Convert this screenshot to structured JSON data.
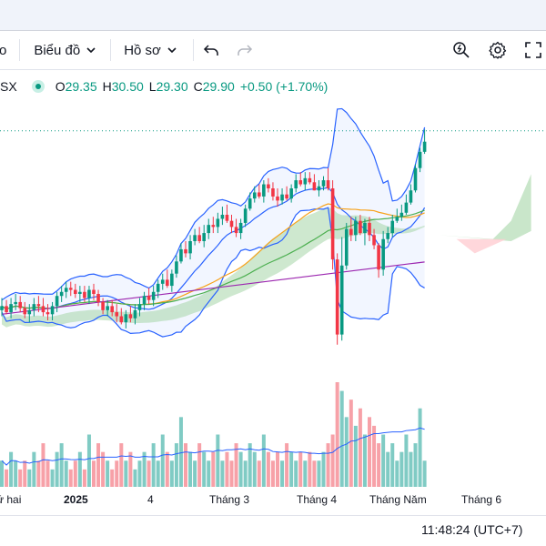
{
  "toolbar": {
    "partial_label": "o",
    "chart_label": "Biểu đồ",
    "profile_label": "Hồ sơ"
  },
  "icons": [
    "chevron-down-icon",
    "undo-icon",
    "redo-icon",
    "quick-search-icon",
    "gear-icon",
    "fullscreen-icon"
  ],
  "legend": {
    "symbol_partial": "SX",
    "open_label": "O",
    "open_value": "29.35",
    "high_label": "H",
    "high_value": "30.50",
    "low_label": "L",
    "low_value": "29.30",
    "close_label": "C",
    "close_value": "29.90",
    "change": "+0.50 (+1.70%)"
  },
  "colors": {
    "up": "#089981",
    "down": "#f23645",
    "bollinger": "#2962ff",
    "ma_orange": "#f7a21b",
    "ma_green": "#4caf50",
    "ma_purple": "#9c27b0",
    "cloud_green": "#a5d6a7",
    "cloud_red": "#ffcdd2"
  },
  "x_axis": {
    "labels": [
      "ứ hai",
      "2025",
      "4",
      "Tháng 3",
      "Tháng 4",
      "Tháng Năm",
      "Tháng 6"
    ]
  },
  "clock": "11:48:24 (UTC+7)",
  "chart_data": {
    "type": "candlestick",
    "open": [
      21.6,
      21.8,
      21.5,
      21.9,
      22.0,
      21.7,
      21.4,
      21.6,
      21.9,
      21.8,
      21.5,
      21.4,
      21.8,
      22.3,
      22.5,
      22.7,
      22.6,
      22.4,
      22.5,
      22.2,
      22.6,
      22.4,
      22.0,
      21.6,
      21.8,
      21.5,
      21.3,
      21.0,
      21.4,
      21.2,
      21.6,
      21.9,
      22.3,
      22.1,
      22.5,
      22.9,
      23.1,
      22.8,
      23.4,
      24.0,
      24.6,
      24.4,
      25.0,
      25.3,
      25.0,
      25.4,
      25.8,
      25.7,
      26.1,
      26.3,
      26.0,
      25.7,
      25.4,
      25.9,
      26.6,
      27.1,
      27.4,
      27.2,
      27.8,
      27.6,
      27.2,
      27.0,
      27.3,
      27.1,
      27.6,
      28.0,
      27.8,
      28.1,
      27.9,
      27.5,
      27.7,
      28.0,
      27.6,
      24.1,
      20.4,
      23.8,
      25.6,
      25.3,
      26.0,
      25.4,
      25.9,
      25.3,
      24.8,
      23.6,
      25.1,
      25.4,
      26.0,
      26.2,
      26.4,
      26.9,
      27.5,
      28.6,
      29.4
    ],
    "high": [
      22.2,
      22.1,
      22.2,
      22.4,
      22.3,
      22.0,
      21.9,
      22.2,
      22.3,
      22.2,
      21.9,
      22.0,
      22.5,
      22.8,
      23.0,
      23.0,
      22.9,
      22.8,
      22.8,
      22.8,
      22.9,
      22.6,
      22.2,
      22.1,
      22.1,
      21.9,
      21.7,
      21.6,
      21.8,
      21.9,
      22.2,
      22.5,
      22.7,
      22.8,
      23.1,
      23.4,
      23.6,
      23.6,
      24.3,
      24.9,
      25.0,
      25.3,
      25.6,
      25.7,
      25.8,
      26.1,
      26.2,
      26.4,
      26.7,
      26.8,
      26.3,
      26.1,
      26.1,
      26.8,
      27.4,
      27.7,
      27.8,
      28.0,
      28.1,
      27.9,
      27.6,
      27.6,
      27.7,
      27.8,
      28.3,
      28.4,
      28.4,
      28.4,
      28.3,
      28.0,
      28.2,
      28.6,
      28.0,
      24.4,
      25.2,
      25.9,
      26.2,
      26.2,
      26.3,
      26.1,
      26.2,
      25.6,
      24.9,
      25.5,
      25.7,
      26.3,
      26.6,
      26.8,
      27.3,
      27.8,
      28.8,
      29.6,
      30.5
    ],
    "low": [
      21.3,
      21.4,
      21.2,
      21.6,
      21.5,
      21.2,
      21.0,
      21.3,
      21.5,
      21.3,
      21.1,
      21.1,
      21.5,
      22.0,
      22.2,
      22.3,
      22.2,
      22.0,
      22.0,
      21.9,
      22.1,
      21.8,
      21.4,
      21.3,
      21.3,
      21.0,
      20.9,
      20.7,
      21.0,
      20.9,
      21.3,
      21.6,
      21.9,
      21.8,
      22.2,
      22.6,
      22.7,
      22.5,
      23.2,
      23.9,
      24.2,
      24.1,
      24.8,
      24.9,
      24.7,
      25.1,
      25.4,
      25.4,
      25.8,
      25.9,
      25.4,
      25.2,
      25.1,
      25.7,
      26.5,
      26.9,
      27.1,
      26.9,
      27.4,
      27.0,
      26.7,
      26.8,
      27.0,
      26.9,
      27.4,
      27.7,
      27.5,
      27.8,
      27.5,
      27.2,
      27.5,
      27.5,
      23.6,
      19.9,
      20.1,
      23.6,
      25.0,
      25.0,
      25.3,
      24.8,
      25.0,
      24.6,
      23.2,
      23.3,
      24.9,
      25.2,
      25.9,
      26.0,
      26.3,
      26.8,
      27.4,
      28.4,
      29.3
    ],
    "close": [
      21.8,
      21.5,
      21.9,
      22.0,
      21.7,
      21.4,
      21.6,
      21.9,
      21.8,
      21.5,
      21.4,
      21.8,
      22.3,
      22.5,
      22.7,
      22.6,
      22.4,
      22.5,
      22.2,
      22.6,
      22.4,
      22.0,
      21.6,
      21.8,
      21.5,
      21.3,
      21.0,
      21.4,
      21.2,
      21.6,
      21.9,
      22.3,
      22.1,
      22.5,
      22.9,
      23.1,
      22.8,
      23.4,
      24.0,
      24.6,
      24.4,
      25.0,
      25.3,
      25.0,
      25.4,
      25.8,
      25.7,
      26.1,
      26.3,
      26.0,
      25.7,
      25.4,
      25.9,
      26.6,
      27.1,
      27.4,
      27.2,
      27.8,
      27.6,
      27.2,
      27.0,
      27.3,
      27.1,
      27.6,
      28.0,
      27.8,
      28.1,
      27.9,
      27.5,
      27.7,
      28.0,
      27.6,
      24.1,
      20.4,
      23.8,
      25.6,
      25.3,
      26.0,
      25.4,
      25.9,
      25.3,
      24.8,
      23.6,
      25.1,
      25.4,
      26.0,
      26.2,
      26.4,
      26.9,
      27.5,
      28.6,
      29.4,
      29.9
    ],
    "volume": [
      3,
      2,
      4,
      3,
      2,
      3,
      2,
      4,
      3,
      5,
      3,
      2,
      4,
      5,
      3,
      2,
      3,
      4,
      2,
      6,
      3,
      5,
      4,
      3,
      2,
      3,
      5,
      3,
      4,
      2,
      3,
      4,
      3,
      5,
      3,
      6,
      4,
      3,
      5,
      8,
      5,
      4,
      3,
      5,
      4,
      3,
      4,
      6,
      3,
      4,
      3,
      5,
      4,
      3,
      5,
      4,
      3,
      6,
      4,
      3,
      4,
      3,
      5,
      4,
      3,
      4,
      3,
      4,
      3,
      3,
      4,
      5,
      6,
      12,
      11,
      8,
      10,
      7,
      9,
      6,
      8,
      7,
      5,
      6,
      4,
      5,
      3,
      4,
      6,
      4,
      5,
      9,
      3
    ]
  }
}
